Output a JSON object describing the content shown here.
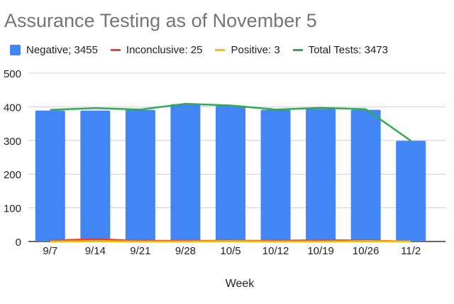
{
  "chart_data": {
    "type": "bar",
    "title": "Assurance Testing as of November 5",
    "xlabel": "Week",
    "ylabel": "",
    "ylim": [
      0,
      500
    ],
    "yticks": [
      0,
      100,
      200,
      300,
      400,
      500
    ],
    "grid": true,
    "legend_position": "top",
    "categories": [
      "9/7",
      "9/14",
      "9/21",
      "9/28",
      "10/5",
      "10/12",
      "10/19",
      "10/26",
      "11/2"
    ],
    "series": [
      {
        "name": "Negative; 3455",
        "kind": "bar",
        "color": "#4285f4",
        "values": [
          389,
          389,
          391,
          408,
          403,
          391,
          394,
          391,
          299
        ]
      },
      {
        "name": "Inconclusive: 25",
        "kind": "line",
        "color": "#ea4335",
        "values": [
          3,
          7,
          2,
          2,
          2,
          2,
          4,
          3,
          0
        ]
      },
      {
        "name": "Positive: 3",
        "kind": "line",
        "color": "#fbbc04",
        "values": [
          0,
          1,
          0,
          0,
          1,
          0,
          0,
          1,
          0
        ]
      },
      {
        "name": "Total Tests: 3473",
        "kind": "line",
        "color": "#34a853",
        "values": [
          391,
          396,
          392,
          409,
          404,
          392,
          397,
          393,
          299
        ]
      }
    ]
  }
}
